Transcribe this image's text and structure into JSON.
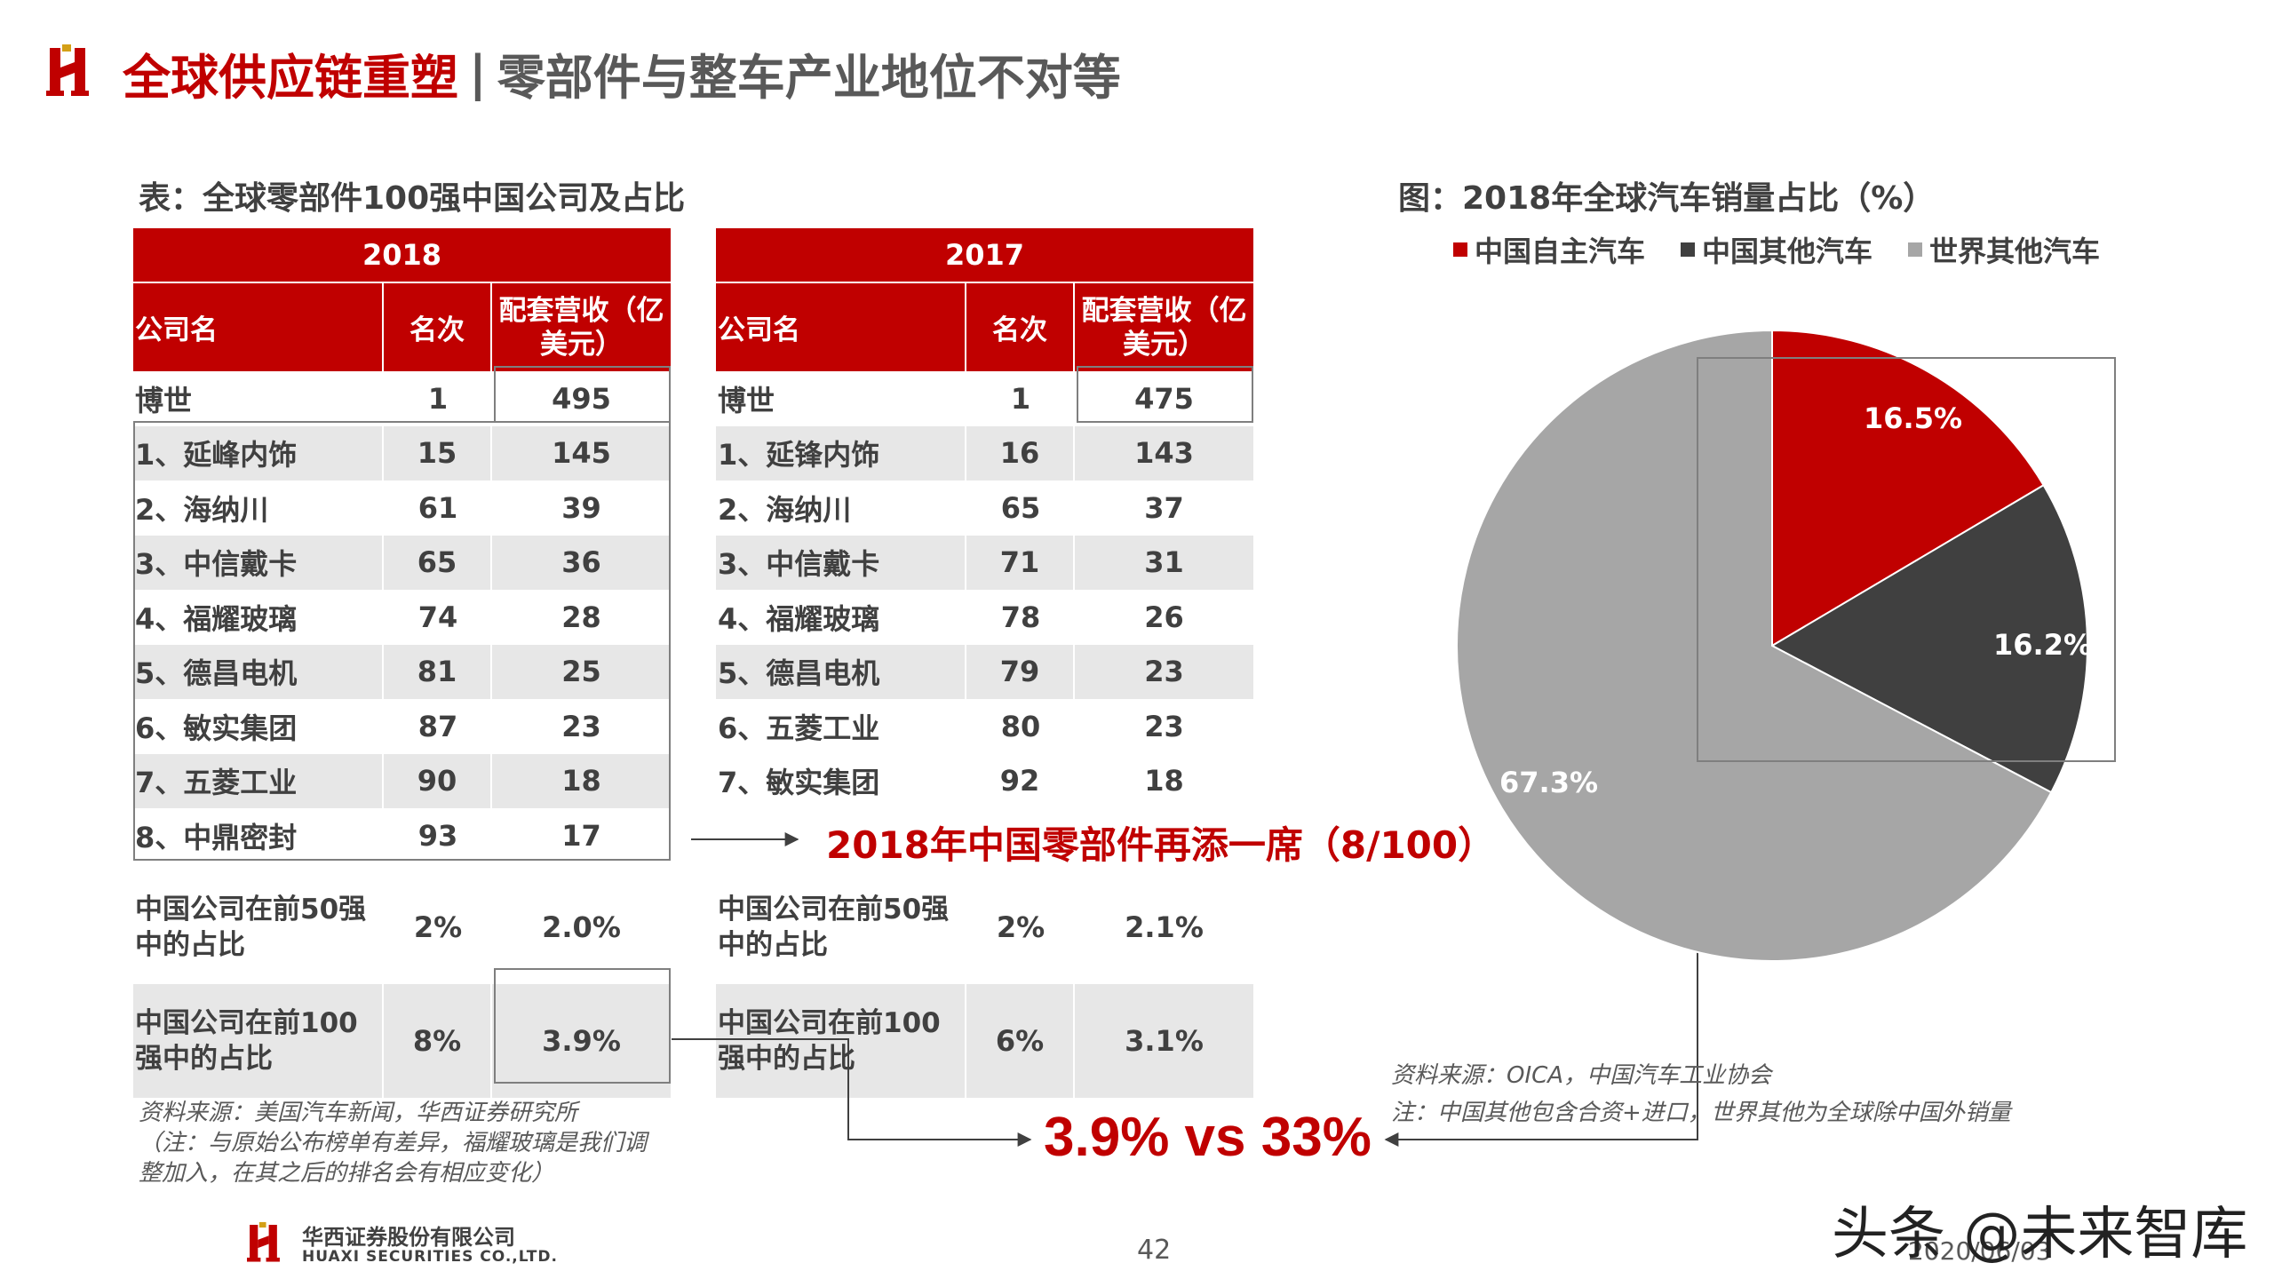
{
  "header": {
    "title_red": "全球供应链重塑",
    "separator": "|",
    "title_gray": "零部件与整车产业地位不对等"
  },
  "table_caption": "表：全球零部件100强中国公司及占比",
  "table_2018": {
    "year": "2018",
    "columns": [
      "公司名",
      "名次",
      "配套营收（亿美元）"
    ],
    "rows": [
      [
        "博世",
        "1",
        "495"
      ],
      [
        "1、延峰内饰",
        "15",
        "145"
      ],
      [
        "2、海纳川",
        "61",
        "39"
      ],
      [
        "3、中信戴卡",
        "65",
        "36"
      ],
      [
        "4、福耀玻璃",
        "74",
        "28"
      ],
      [
        "5、德昌电机",
        "81",
        "25"
      ],
      [
        "6、敏实集团",
        "87",
        "23"
      ],
      [
        "7、五菱工业",
        "90",
        "18"
      ],
      [
        "8、中鼎密封",
        "93",
        "17"
      ]
    ],
    "summary": [
      [
        "中国公司在前50强中的占比",
        "2%",
        "2.0%"
      ],
      [
        "中国公司在前100强中的占比",
        "8%",
        "3.9%"
      ]
    ]
  },
  "table_2017": {
    "year": "2017",
    "columns": [
      "公司名",
      "名次",
      "配套营收（亿美元）"
    ],
    "rows": [
      [
        "博世",
        "1",
        "475"
      ],
      [
        "1、延锋内饰",
        "16",
        "143"
      ],
      [
        "2、海纳川",
        "65",
        "37"
      ],
      [
        "3、中信戴卡",
        "71",
        "31"
      ],
      [
        "4、福耀玻璃",
        "78",
        "26"
      ],
      [
        "5、德昌电机",
        "79",
        "23"
      ],
      [
        "6、五菱工业",
        "80",
        "23"
      ],
      [
        "7、敏实集团",
        "92",
        "18"
      ]
    ],
    "summary": [
      [
        "中国公司在前50强中的占比",
        "2%",
        "2.1%"
      ],
      [
        "中国公司在前100强中的占比",
        "6%",
        "3.1%"
      ]
    ]
  },
  "highlight_seat": "2018年中国零部件再添一席（8/100）",
  "highlight_compare": "3.9% vs 33%",
  "table_source": [
    "资料来源：美国汽车新闻，华西证券研究所",
    "（注：与原始公布榜单有差异，福耀玻璃是我们调",
    "整加入，在其之后的排名会有相应变化）"
  ],
  "chart_data": {
    "type": "pie",
    "title": "图：2018年全球汽车销量占比（%）",
    "legend_position": "top",
    "series": [
      {
        "name": "中国自主汽车",
        "value": 16.5,
        "label": "16.5%",
        "color": "#c00000"
      },
      {
        "name": "中国其他汽车",
        "value": 16.2,
        "label": "16.2%",
        "color": "#404040"
      },
      {
        "name": "世界其他汽车",
        "value": 67.3,
        "label": "67.3%",
        "color": "#a6a6a6"
      }
    ]
  },
  "chart_source": [
    "资料来源：OICA，中国汽车工业协会",
    "注：中国其他包含合资+进口，世界其他为全球除中国外销量"
  ],
  "footer": {
    "company_cn": "华西证券股份有限公司",
    "company_en": "HUAXI SECURITIES CO.,LTD.",
    "page_number": "42",
    "watermark": "头条 @未来智库",
    "date": "2020/06/03"
  },
  "colors": {
    "accent": "#c00000",
    "dark_gray": "#404040",
    "light_gray": "#a6a6a6",
    "row_shade": "#e7e7e7"
  }
}
